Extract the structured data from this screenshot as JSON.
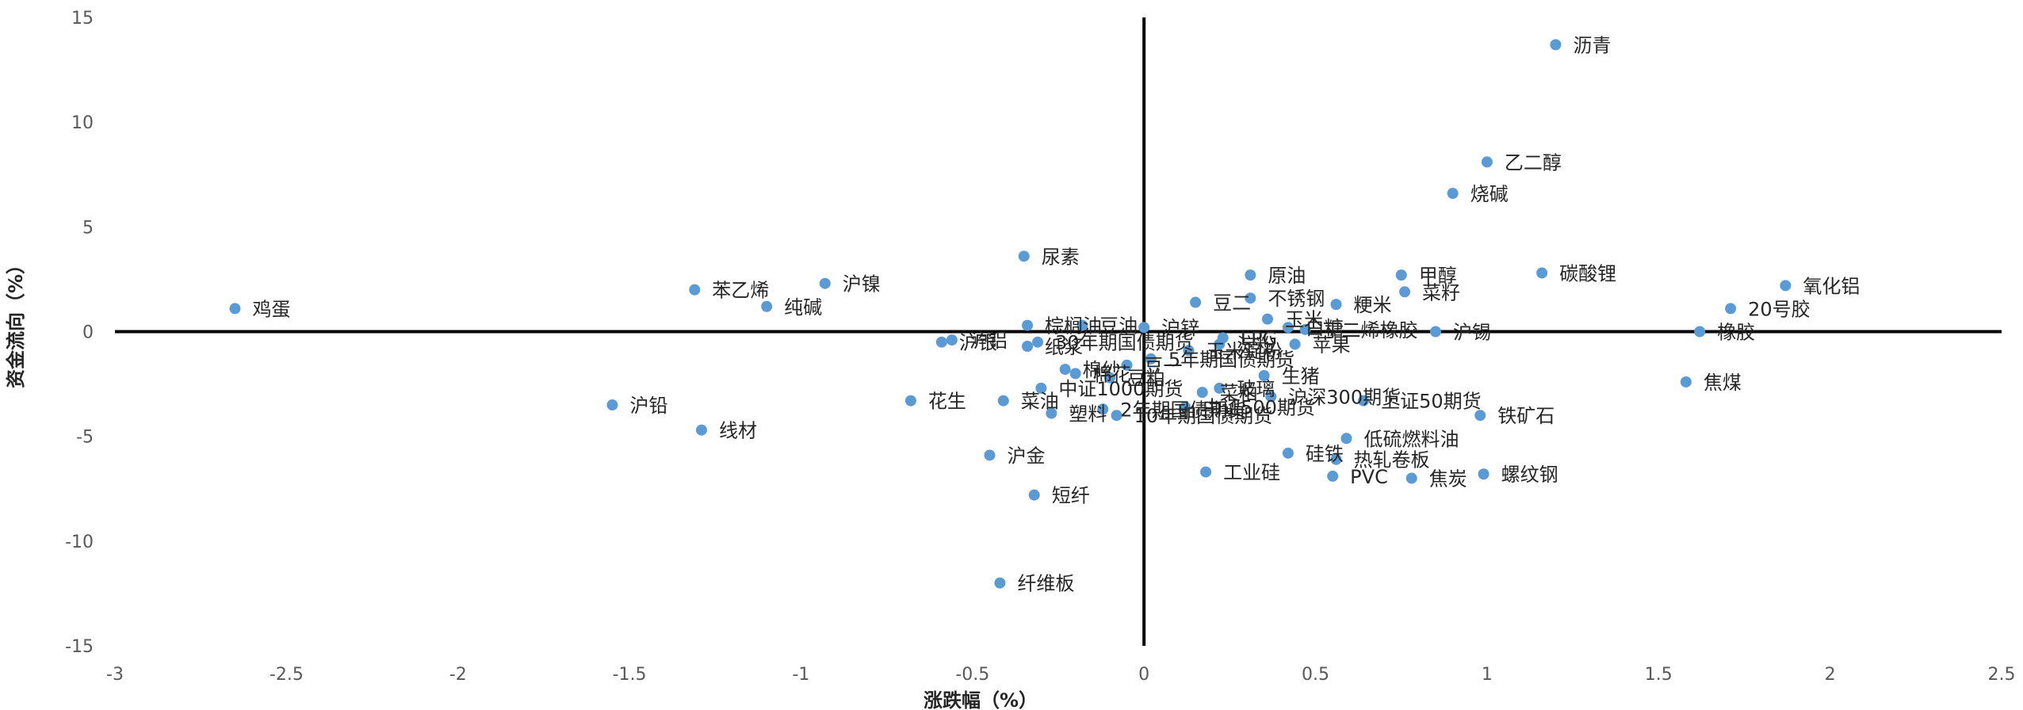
{
  "chart_data": {
    "type": "scatter",
    "title": "",
    "xlabel": "涨跌幅（%）",
    "ylabel": "资金流向（%）",
    "xlim": [
      -3,
      2.5
    ],
    "ylim": [
      -15,
      15
    ],
    "xticks": [
      "-3",
      "-2.5",
      "-2",
      "-1.5",
      "-1",
      "-0.5",
      "0",
      "0.5",
      "1",
      "1.5",
      "2",
      "2.5"
    ],
    "yticks": [
      "15",
      "10",
      "5",
      "0",
      "-5",
      "-10",
      "-15"
    ],
    "grid": false,
    "legend": "none",
    "marker_color": "#5B9BD5",
    "axis_color": "#000000",
    "points": [
      {
        "label": "沥青",
        "x": 1.2,
        "y": 13.7
      },
      {
        "label": "乙二醇",
        "x": 1.0,
        "y": 8.1
      },
      {
        "label": "烧碱",
        "x": 0.9,
        "y": 6.6
      },
      {
        "label": "尿素",
        "x": -0.35,
        "y": 3.6
      },
      {
        "label": "碳酸锂",
        "x": 1.16,
        "y": 2.8
      },
      {
        "label": "原油",
        "x": 0.31,
        "y": 2.7
      },
      {
        "label": "甲醇",
        "x": 0.75,
        "y": 2.7
      },
      {
        "label": "氧化铝",
        "x": 1.87,
        "y": 2.2
      },
      {
        "label": "菜籽",
        "x": 0.76,
        "y": 1.9
      },
      {
        "label": "沪镍",
        "x": -0.93,
        "y": 2.3
      },
      {
        "label": "苯乙烯",
        "x": -1.31,
        "y": 2.0
      },
      {
        "label": "纯碱",
        "x": -1.1,
        "y": 1.2
      },
      {
        "label": "鸡蛋",
        "x": -2.65,
        "y": 1.1
      },
      {
        "label": "豆二",
        "x": 0.15,
        "y": 1.4
      },
      {
        "label": "不锈钢",
        "x": 0.31,
        "y": 1.6
      },
      {
        "label": "粳米",
        "x": 0.56,
        "y": 1.3
      },
      {
        "label": "20号胶",
        "x": 1.71,
        "y": 1.1
      },
      {
        "label": "棕榈油",
        "x": -0.34,
        "y": 0.3
      },
      {
        "label": "豆油",
        "x": -0.18,
        "y": 0.3
      },
      {
        "label": "沪锌",
        "x": 0.0,
        "y": 0.2
      },
      {
        "label": "玉米",
        "x": 0.36,
        "y": 0.6
      },
      {
        "label": "白糖",
        "x": 0.42,
        "y": 0.2
      },
      {
        "label": "丁二烯橡胶",
        "x": 0.47,
        "y": 0.1
      },
      {
        "label": "沪锡",
        "x": 0.85,
        "y": 0.0
      },
      {
        "label": "橡胶",
        "x": 1.62,
        "y": 0.0
      },
      {
        "label": "沪银",
        "x": -0.59,
        "y": -0.5
      },
      {
        "label": "沪铝",
        "x": -0.56,
        "y": -0.4
      },
      {
        "label": "30年期国债期货",
        "x": -0.31,
        "y": -0.5
      },
      {
        "label": "纸浆",
        "x": -0.34,
        "y": -0.7
      },
      {
        "label": "LPG",
        "x": 0.23,
        "y": -0.3
      },
      {
        "label": "淀粉",
        "x": 0.22,
        "y": -0.6
      },
      {
        "label": "苹果",
        "x": 0.44,
        "y": -0.6
      },
      {
        "label": "玉米淀粉",
        "x": 0.13,
        "y": -0.9
      },
      {
        "label": "5年期国债期货",
        "x": 0.02,
        "y": -1.3
      },
      {
        "label": "豆一",
        "x": -0.05,
        "y": -1.6
      },
      {
        "label": "棉纱",
        "x": -0.23,
        "y": -1.8
      },
      {
        "label": "棉花",
        "x": -0.2,
        "y": -2.0
      },
      {
        "label": "中证1000期货",
        "x": -0.3,
        "y": -2.7
      },
      {
        "label": "豆粕",
        "x": -0.1,
        "y": -2.2
      },
      {
        "label": "生猪",
        "x": 0.35,
        "y": -2.1
      },
      {
        "label": "玻璃",
        "x": 0.22,
        "y": -2.7
      },
      {
        "label": "菜粕",
        "x": 0.17,
        "y": -2.9
      },
      {
        "label": "沪深300期货",
        "x": 0.37,
        "y": -3.1
      },
      {
        "label": "上证50期货",
        "x": 0.64,
        "y": -3.3
      },
      {
        "label": "中证500期货",
        "x": 0.12,
        "y": -3.6
      },
      {
        "label": "10年期国债期货",
        "x": -0.08,
        "y": -4.0
      },
      {
        "label": "2年期国债期货",
        "x": -0.12,
        "y": -3.7
      },
      {
        "label": "塑料",
        "x": -0.27,
        "y": -3.9
      },
      {
        "label": "菜油",
        "x": -0.41,
        "y": -3.3
      },
      {
        "label": "花生",
        "x": -0.68,
        "y": -3.3
      },
      {
        "label": "铁矿石",
        "x": 0.98,
        "y": -4.0
      },
      {
        "label": "焦煤",
        "x": 1.58,
        "y": -2.4
      },
      {
        "label": "沪铅",
        "x": -1.55,
        "y": -3.5
      },
      {
        "label": "线材",
        "x": -1.29,
        "y": -4.7
      },
      {
        "label": "低硫燃料油",
        "x": 0.59,
        "y": -5.1
      },
      {
        "label": "硅铁",
        "x": 0.42,
        "y": -5.8
      },
      {
        "label": "热轧卷板",
        "x": 0.56,
        "y": -6.1
      },
      {
        "label": "沪金",
        "x": -0.45,
        "y": -5.9
      },
      {
        "label": "工业硅",
        "x": 0.18,
        "y": -6.7
      },
      {
        "label": "PVC",
        "x": 0.55,
        "y": -6.9
      },
      {
        "label": "焦炭",
        "x": 0.78,
        "y": -7.0
      },
      {
        "label": "螺纹钢",
        "x": 0.99,
        "y": -6.8
      },
      {
        "label": "短纤",
        "x": -0.32,
        "y": -7.8
      },
      {
        "label": "纤维板",
        "x": -0.42,
        "y": -12.0
      }
    ]
  }
}
